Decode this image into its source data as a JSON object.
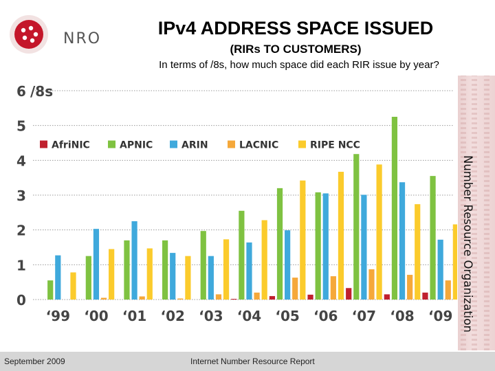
{
  "header": {
    "logo_text": "NRO",
    "title": "IPv4 ADDRESS SPACE ISSUED",
    "subtitle": "(RIRs TO CUSTOMERS)",
    "question": "In terms of /8s, how much space did each RIR issue by year?"
  },
  "side_label": "Number Resource Organization",
  "footer": {
    "date": "September 2009",
    "report": "Internet Number Resource Report"
  },
  "colors": {
    "AfriNIC": "#c0202e",
    "APNIC": "#7fc241",
    "ARIN": "#3fa9dc",
    "LACNIC": "#f5a83a",
    "RIPE NCC": "#fbcb2c",
    "axis_text": "#444444"
  },
  "chart_data": {
    "type": "bar",
    "title": "",
    "ylabel": "/8s",
    "xlabel": "",
    "ylim": [
      0,
      6
    ],
    "ytick_labels": [
      "0",
      "1",
      "2",
      "3",
      "4",
      "5",
      "6"
    ],
    "grid": true,
    "legend_position": "top-left",
    "categories": [
      "‘99",
      "‘00",
      "‘01",
      "‘02",
      "‘03",
      "‘04",
      "‘05",
      "‘06",
      "‘07",
      "‘08",
      "‘09"
    ],
    "series": [
      {
        "name": "AfriNIC",
        "values": [
          0.0,
          0.0,
          0.0,
          0.0,
          0.0,
          0.02,
          0.1,
          0.14,
          0.33,
          0.15,
          0.2
        ]
      },
      {
        "name": "APNIC",
        "values": [
          0.55,
          1.25,
          1.7,
          1.7,
          1.97,
          2.55,
          3.2,
          3.08,
          4.18,
          5.25,
          3.55
        ]
      },
      {
        "name": "ARIN",
        "values": [
          1.27,
          2.03,
          2.25,
          1.34,
          1.25,
          1.64,
          1.99,
          3.05,
          3.01,
          3.37,
          1.72
        ]
      },
      {
        "name": "LACNIC",
        "values": [
          0.0,
          0.05,
          0.09,
          0.03,
          0.15,
          0.2,
          0.63,
          0.67,
          0.87,
          0.71,
          0.55
        ]
      },
      {
        "name": "RIPE NCC",
        "values": [
          0.78,
          1.45,
          1.47,
          1.25,
          1.73,
          2.28,
          3.42,
          3.67,
          3.88,
          2.74,
          2.16
        ]
      }
    ]
  }
}
